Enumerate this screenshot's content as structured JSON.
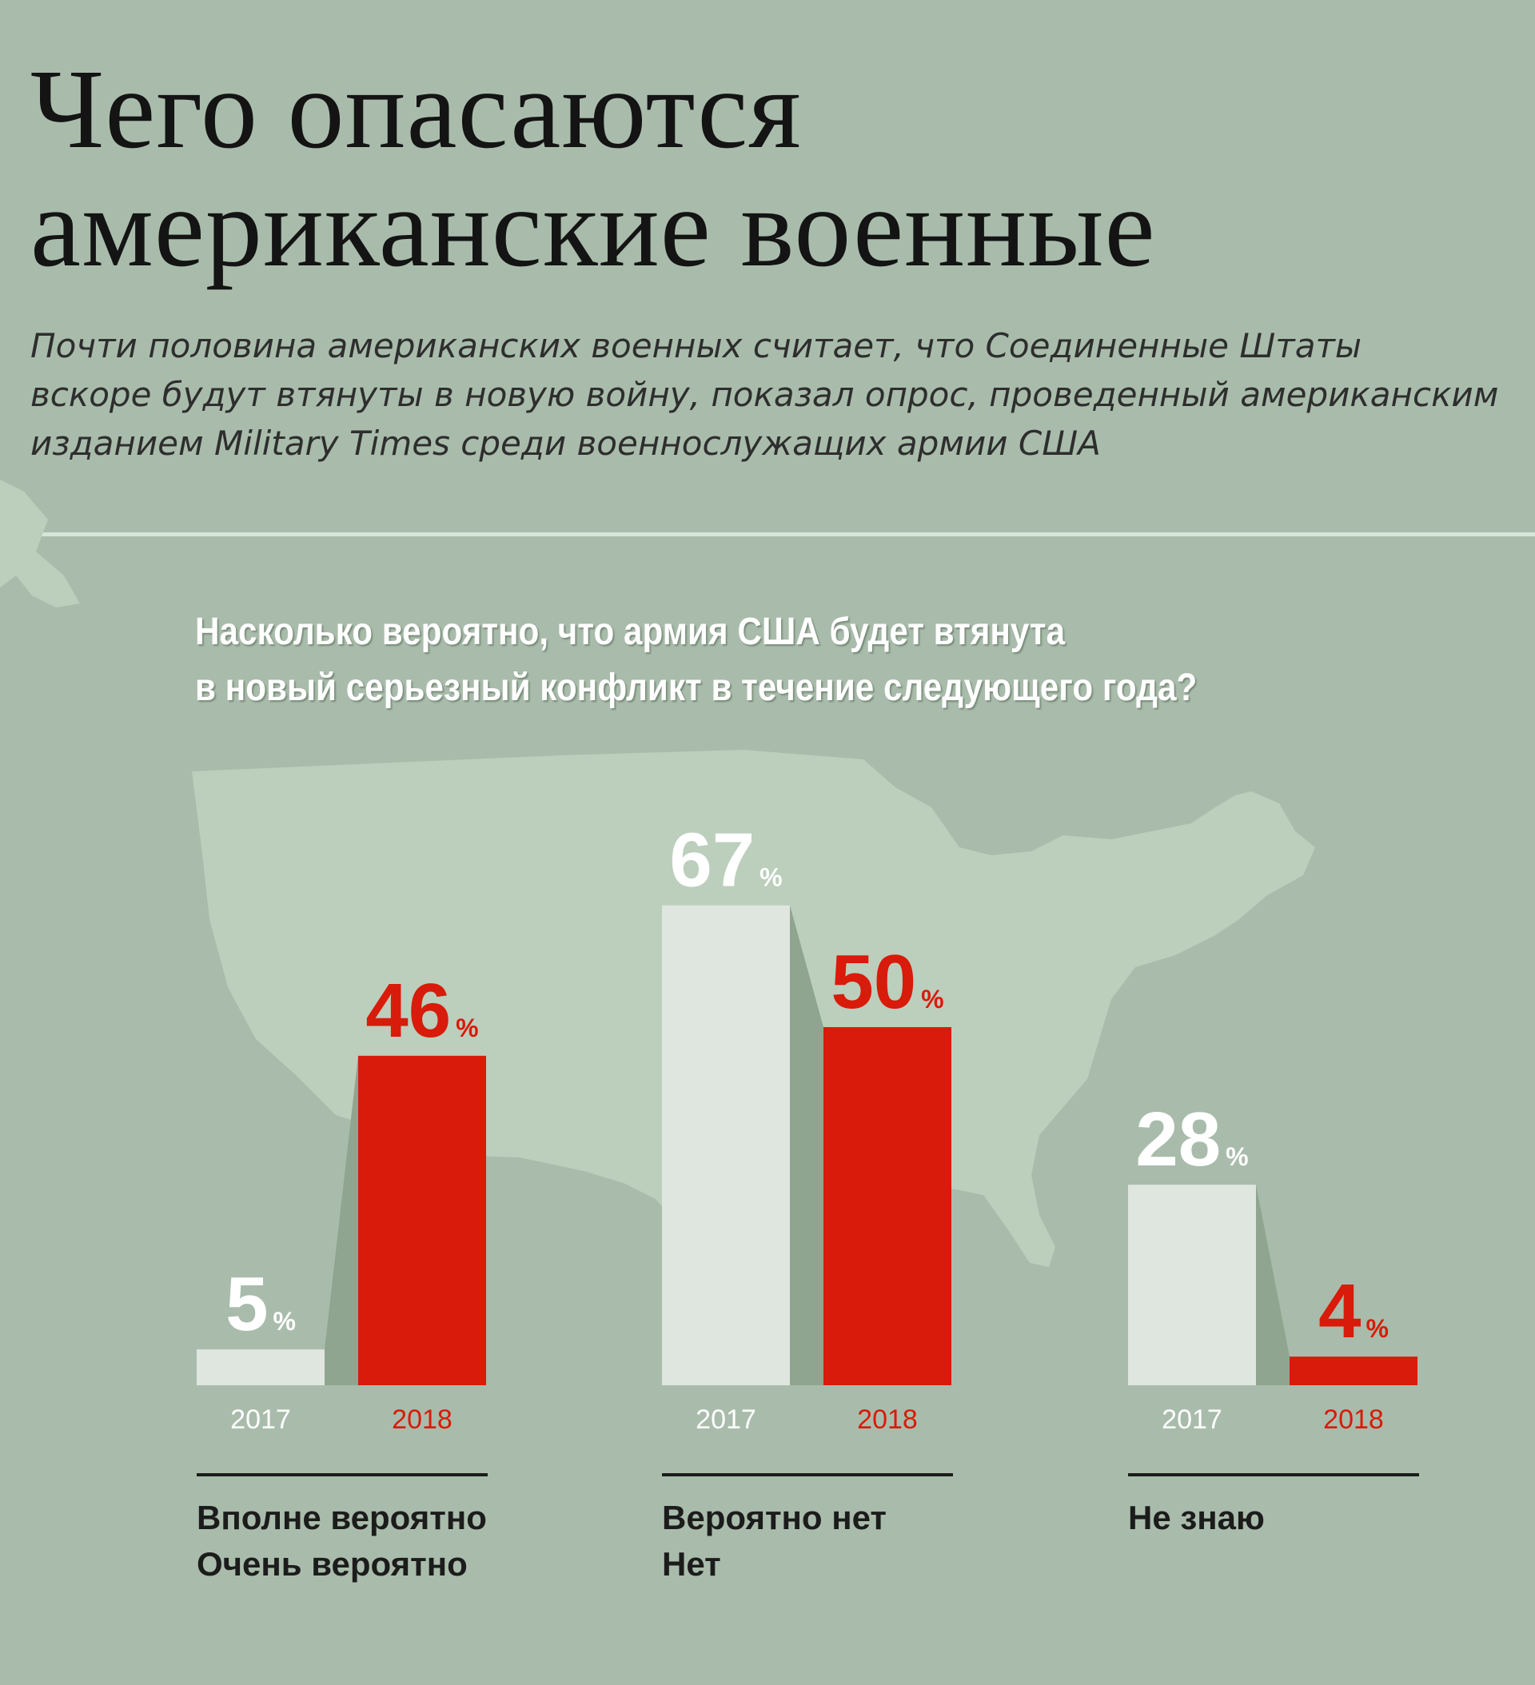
{
  "header": {
    "title_lines": [
      "Чего опасаются",
      "американские военные"
    ],
    "subtitle_lines": [
      "Почти половина американских военных считает, что Соединенные Штаты",
      "вскоре будут втянуты в новую войну, показал опрос, проведенный американским",
      "изданием Military Times среди военнослужащих армии США"
    ]
  },
  "colors": {
    "background": "#a9bcab",
    "bar_2017": "#dfe6df",
    "bar_2018": "#d81b0a",
    "connector": "#8fa58f",
    "map": "#bccebc"
  },
  "chart_data": {
    "type": "bar",
    "title_lines": [
      "Насколько вероятно, что армия США будет втянута",
      "в новый серьезный конфликт в течение следующего года?"
    ],
    "groups": [
      {
        "label_lines": [
          "Вполне вероятно",
          "Очень вероятно"
        ]
      },
      {
        "label_lines": [
          "Вероятно нет",
          "Нет"
        ]
      },
      {
        "label_lines": [
          "Не знаю"
        ]
      }
    ],
    "series": [
      {
        "name": "2017",
        "values": [
          5,
          67,
          28
        ]
      },
      {
        "name": "2018",
        "values": [
          46,
          50,
          4
        ]
      }
    ],
    "unit": "%",
    "ylim": [
      0,
      70
    ]
  }
}
